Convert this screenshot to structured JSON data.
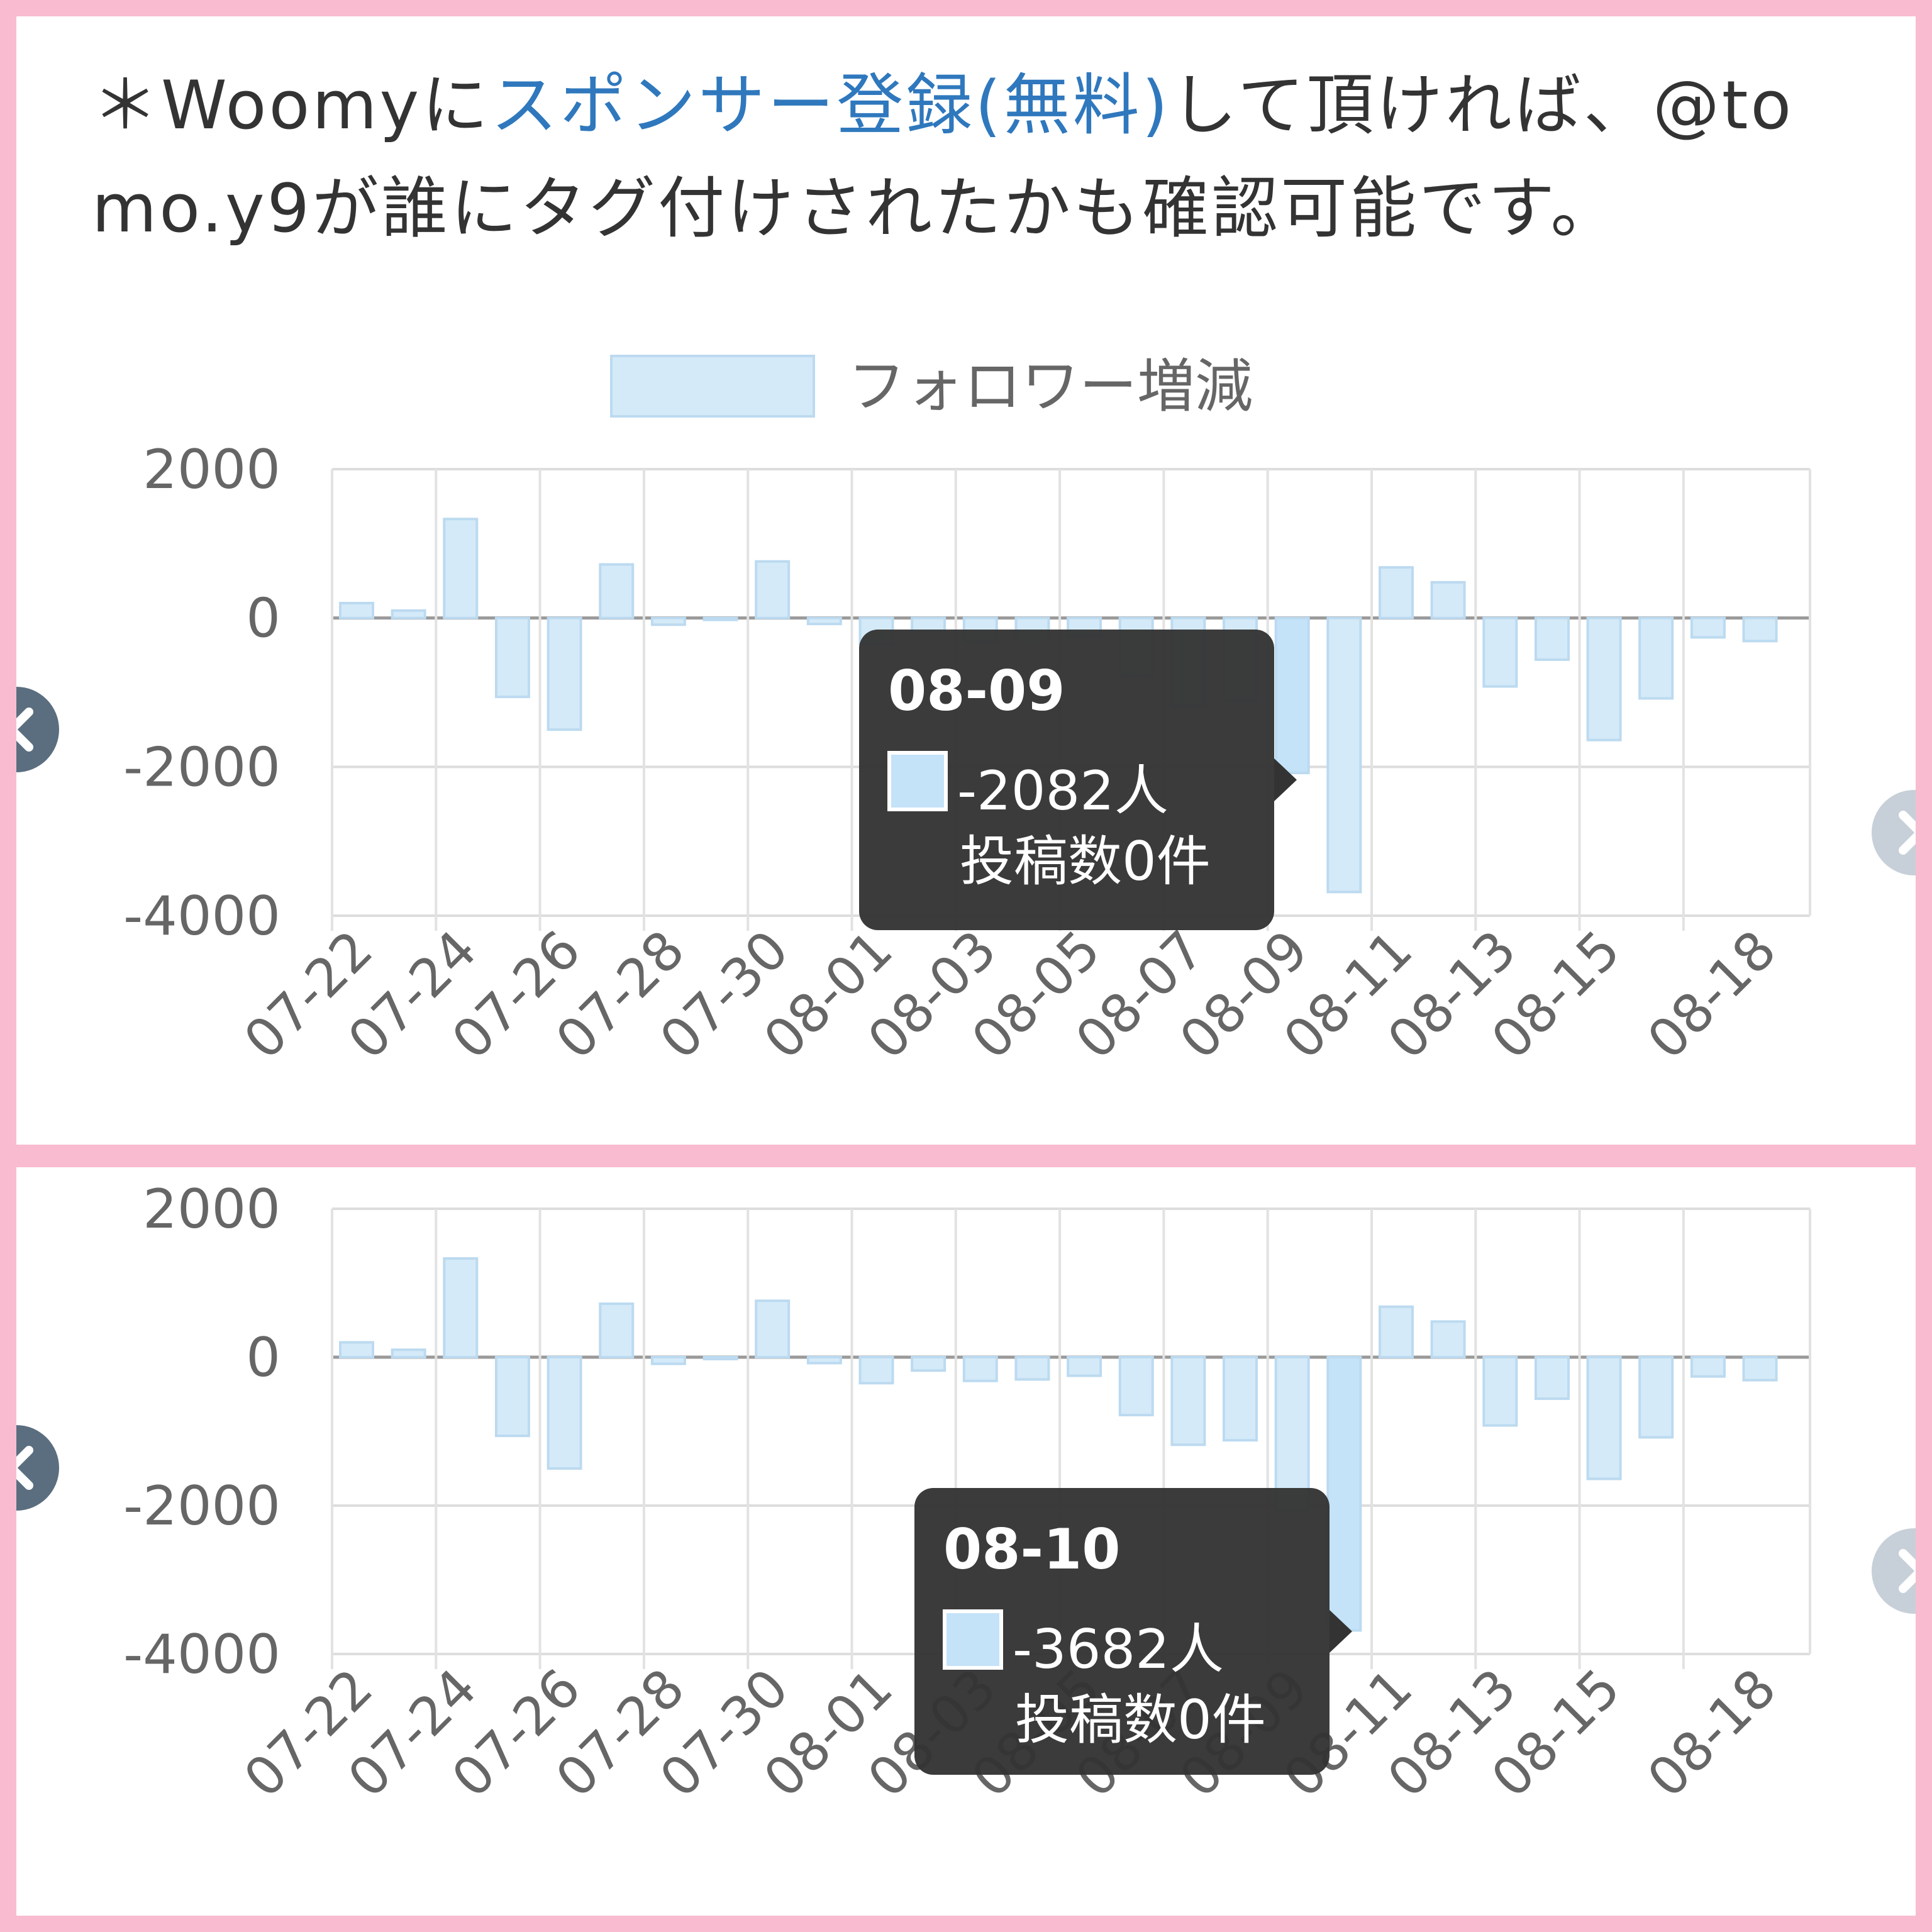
{
  "notice": {
    "prefix": "＊Woomyに",
    "link": "スポンサー登録(無料)",
    "suffix": "して頂ければ、@tomo.y9が誰にタグ付けされたかも確認可能です。"
  },
  "colors": {
    "bar_fill": "#d4eaf8",
    "bar_stroke": "#bcdaf0",
    "bar_active_fill": "#c4e2f8",
    "tooltip_bg": "#333333",
    "link": "#2f78bd",
    "frame": "#f8bbd0",
    "nav_left": "#5a6e80",
    "nav_right": "#c7d0d8"
  },
  "icons": {
    "nav_prev": "chevron-left-icon",
    "nav_next": "chevron-right-icon"
  },
  "chart_data": [
    {
      "type": "bar",
      "legend": {
        "label": "フォロワー増減",
        "position": "top"
      },
      "series": [
        {
          "name": "フォロワー増減"
        }
      ],
      "categories": [
        "07-22",
        "07-23",
        "07-24",
        "07-25",
        "07-26",
        "07-27",
        "07-28",
        "07-29",
        "07-30",
        "07-31",
        "08-01",
        "08-02",
        "08-03",
        "08-04",
        "08-05",
        "08-06",
        "08-07",
        "08-08",
        "08-09",
        "08-10",
        "08-11",
        "08-12",
        "08-13",
        "08-14",
        "08-15",
        "08-16",
        "08-17",
        "08-18"
      ],
      "values": [
        200,
        100,
        1330,
        -1060,
        -1500,
        720,
        -90,
        -20,
        760,
        -80,
        -350,
        -180,
        -320,
        -300,
        -250,
        -780,
        -1180,
        -1120,
        -2082,
        -3682,
        680,
        480,
        -920,
        -560,
        -1640,
        -1080,
        -260,
        -310
      ],
      "tick_labels": [
        "07-22",
        "07-24",
        "07-26",
        "07-28",
        "07-30",
        "08-01",
        "08-03",
        "08-05",
        "08-07",
        "08-09",
        "08-11",
        "08-13",
        "08-15",
        "08-18"
      ],
      "ylim": [
        -4000,
        2000
      ],
      "yticks": [
        "2000",
        "0",
        "-2000",
        "-4000"
      ],
      "grid": true,
      "tooltip": {
        "title": "08-09",
        "value": "-2082人",
        "posts": "投稿数0件"
      }
    },
    {
      "type": "bar",
      "series": [
        {
          "name": "フォロワー増減"
        }
      ],
      "categories": [
        "07-22",
        "07-23",
        "07-24",
        "07-25",
        "07-26",
        "07-27",
        "07-28",
        "07-29",
        "07-30",
        "07-31",
        "08-01",
        "08-02",
        "08-03",
        "08-04",
        "08-05",
        "08-06",
        "08-07",
        "08-08",
        "08-09",
        "08-10",
        "08-11",
        "08-12",
        "08-13",
        "08-14",
        "08-15",
        "08-16",
        "08-17",
        "08-18"
      ],
      "values": [
        200,
        100,
        1330,
        -1060,
        -1500,
        720,
        -90,
        -20,
        760,
        -80,
        -350,
        -180,
        -320,
        -300,
        -250,
        -780,
        -1180,
        -1120,
        -2082,
        -3682,
        680,
        480,
        -920,
        -560,
        -1640,
        -1080,
        -260,
        -310
      ],
      "tick_labels": [
        "07-22",
        "07-24",
        "07-26",
        "07-28",
        "07-30",
        "08-01",
        "08-03",
        "08-05",
        "08-07",
        "08-09",
        "08-11",
        "08-13",
        "08-15",
        "08-18"
      ],
      "ylim": [
        -4000,
        2000
      ],
      "yticks": [
        "2000",
        "0",
        "-2000",
        "-4000"
      ],
      "grid": true,
      "tooltip": {
        "title": "08-10",
        "value": "-3682人",
        "posts": "投稿数0件"
      }
    }
  ]
}
